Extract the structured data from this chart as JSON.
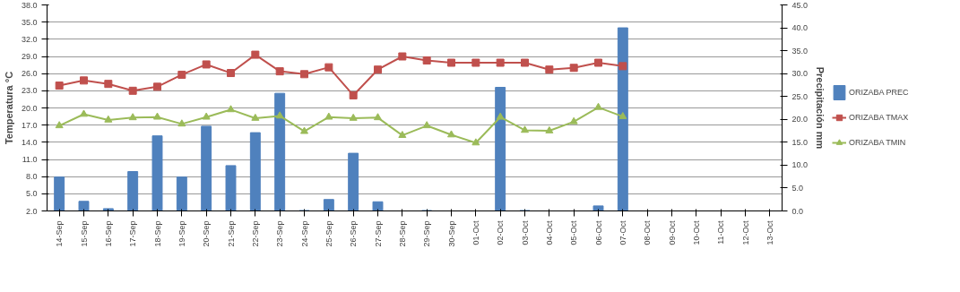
{
  "chart_data": {
    "type": "bar",
    "categories": [
      "14-Sep",
      "15-Sep",
      "16-Sep",
      "17-Sep",
      "18-Sep",
      "19-Sep",
      "20-Sep",
      "21-Sep",
      "22-Sep",
      "23-Sep",
      "24-Sep",
      "25-Sep",
      "26-Sep",
      "27-Sep",
      "28-Sep",
      "29-Sep",
      "30-Sep",
      "01-Oct",
      "02-Oct",
      "03-Oct",
      "04-Oct",
      "05-Oct",
      "06-Oct",
      "07-Oct",
      "08-Oct",
      "09-Oct",
      "10-Oct",
      "11-Oct",
      "12-Oct",
      "13-Oct"
    ],
    "ylabel": "Temperatura °C",
    "y2label": "Precipitación mm",
    "series": [
      {
        "name": "ORIZABA PREC",
        "axis": "y2",
        "color": "#4f81bd",
        "values": [
          7.4,
          2.1,
          0.5,
          8.6,
          16.4,
          7.4,
          18.5,
          9.9,
          17.1,
          25.7,
          0.1,
          2.5,
          12.6,
          2.0,
          0,
          0.1,
          0,
          0,
          27.0,
          0.1,
          0,
          0,
          1.1,
          40.0,
          null,
          null,
          null,
          null,
          null,
          null
        ]
      },
      {
        "name": "ORIZABA TMAX",
        "type": "line",
        "marker": "square",
        "color": "#c0504d",
        "values": [
          23.9,
          24.8,
          24.2,
          23.0,
          23.7,
          25.8,
          27.6,
          26.1,
          29.3,
          26.4,
          25.9,
          27.1,
          22.2,
          26.7,
          29.0,
          28.3,
          27.9,
          27.9,
          27.9,
          27.9,
          26.7,
          27.0,
          27.9,
          27.3,
          null,
          null,
          null,
          null,
          null,
          null
        ]
      },
      {
        "name": "ORIZABA TMIN",
        "type": "line",
        "marker": "triangle",
        "color": "#9bbb59",
        "values": [
          16.9,
          18.9,
          17.9,
          18.3,
          18.4,
          17.2,
          18.4,
          19.7,
          18.2,
          18.6,
          15.9,
          18.4,
          18.2,
          18.3,
          15.2,
          16.9,
          15.3,
          13.9,
          18.4,
          16.1,
          16.0,
          17.6,
          20.1,
          18.5,
          null,
          null,
          null,
          null,
          null,
          null
        ]
      }
    ],
    "ylim": [
      2,
      38
    ],
    "yticks": [
      {
        "value": 2,
        "label": "2.0"
      },
      {
        "value": 5,
        "label": "5.0"
      },
      {
        "value": 8,
        "label": "8.0"
      },
      {
        "value": 11,
        "label": "11.0"
      },
      {
        "value": 14,
        "label": "14.0"
      },
      {
        "value": 17,
        "label": "17.0"
      },
      {
        "value": 20,
        "label": "20.0"
      },
      {
        "value": 23,
        "label": "23.0"
      },
      {
        "value": 26,
        "label": "26.0"
      },
      {
        "value": 29,
        "label": "29.0"
      },
      {
        "value": 32,
        "label": "32.0"
      },
      {
        "value": 35,
        "label": "35.0"
      },
      {
        "value": 38,
        "label": "38.0"
      }
    ],
    "y2lim": [
      0,
      45
    ],
    "y2ticks": [
      {
        "value": 0,
        "label": "0.0"
      },
      {
        "value": 5,
        "label": "5.0"
      },
      {
        "value": 10,
        "label": "10.0"
      },
      {
        "value": 15,
        "label": "15.0"
      },
      {
        "value": 20,
        "label": "20.0"
      },
      {
        "value": 25,
        "label": "25.0"
      },
      {
        "value": 30,
        "label": "30.0"
      },
      {
        "value": 35,
        "label": "35.0"
      },
      {
        "value": 40,
        "label": "40.0"
      },
      {
        "value": 45,
        "label": "45.0"
      }
    ],
    "grid": "y",
    "legend": "right"
  }
}
